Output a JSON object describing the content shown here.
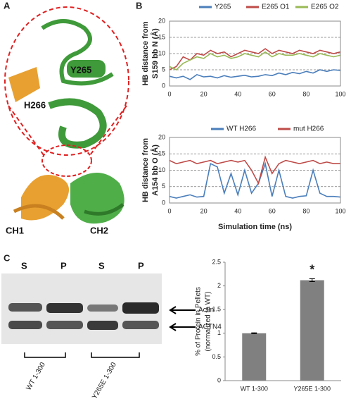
{
  "panel_labels": [
    "A",
    "B",
    "C"
  ],
  "panel_a": {
    "labels": [
      "Y265",
      "H266",
      "CH1",
      "CH2"
    ]
  },
  "panel_c_gel": {
    "lanes": [
      "S",
      "P",
      "S",
      "P"
    ],
    "bands": [
      "Actin",
      "ACTN4"
    ],
    "groups": [
      "WT 1-300",
      "Y265E 1-300"
    ]
  },
  "chart_data": [
    {
      "type": "line",
      "ylabel": [
        "HB distance from",
        "S159 bb N (Å)"
      ],
      "x": [
        0,
        4,
        8,
        12,
        16,
        20,
        24,
        28,
        32,
        36,
        40,
        44,
        48,
        52,
        56,
        60,
        64,
        68,
        72,
        76,
        80,
        84,
        88,
        92,
        96,
        100
      ],
      "series": [
        {
          "name": "Y265",
          "color": "#4a7ebb",
          "values": [
            3,
            2.5,
            3,
            2,
            3.5,
            2.8,
            3,
            2.5,
            3.2,
            2.7,
            3,
            3.3,
            2.8,
            3,
            3.5,
            3.2,
            4,
            3.5,
            4.2,
            3.8,
            4.5,
            4,
            5,
            4.5,
            5,
            4.8
          ]
        },
        {
          "name": "E265 O1",
          "color": "#be4b48",
          "values": [
            5,
            6,
            9,
            8,
            10,
            9.5,
            11,
            10,
            10.5,
            9,
            10,
            11,
            10.5,
            10,
            11.5,
            10,
            11,
            10.5,
            10,
            11,
            10.5,
            10,
            11,
            10.5,
            10,
            10.5
          ]
        },
        {
          "name": "E265 O2",
          "color": "#98b954",
          "values": [
            6,
            5,
            7,
            8,
            9,
            8.5,
            10,
            9,
            9.5,
            8.5,
            9,
            10,
            9.5,
            9,
            10.5,
            9,
            10,
            9.5,
            9.5,
            10,
            9.5,
            9,
            10,
            9.5,
            9,
            9.5
          ]
        }
      ],
      "xlim": [
        0,
        100
      ],
      "xticks": [
        0,
        20,
        40,
        60,
        80,
        100
      ],
      "ylim": [
        0,
        20
      ],
      "yticks": [
        0,
        5,
        10,
        15,
        20
      ],
      "grid": true
    },
    {
      "type": "line",
      "ylabel": [
        "HB distance from",
        "A154 bb O (Å)"
      ],
      "xlabel": "Simulation time (ns)",
      "x": [
        0,
        4,
        8,
        12,
        16,
        20,
        24,
        28,
        32,
        36,
        40,
        44,
        48,
        52,
        56,
        60,
        64,
        68,
        72,
        76,
        80,
        84,
        88,
        92,
        96,
        100
      ],
      "series": [
        {
          "name": "WT H266",
          "color": "#4a7ebb",
          "values": [
            2,
            1.5,
            2,
            2.5,
            1.8,
            2,
            12,
            11,
            3,
            9,
            2.5,
            10,
            3,
            6,
            12,
            2,
            10,
            2,
            1.5,
            2,
            2.2,
            10,
            3,
            2,
            2,
            1.8
          ]
        },
        {
          "name": "mut H266",
          "color": "#be4b48",
          "values": [
            13,
            12,
            12.5,
            13,
            12,
            12.5,
            13,
            12,
            12.5,
            13,
            12.5,
            13,
            10,
            6,
            14,
            9,
            12,
            13,
            12.5,
            12,
            12.5,
            13,
            12,
            12.5,
            12,
            12
          ]
        }
      ],
      "xlim": [
        0,
        100
      ],
      "xticks": [
        0,
        20,
        40,
        60,
        80,
        100
      ],
      "ylim": [
        0,
        20
      ],
      "yticks": [
        0,
        5,
        10,
        15,
        20
      ],
      "grid": true
    },
    {
      "type": "bar",
      "ylabel": [
        "% of Protein in Pellets",
        "(normalized to WT)"
      ],
      "categories": [
        "WT 1-300",
        "Y265E 1-300"
      ],
      "values": [
        1,
        2.12
      ],
      "errors": [
        0.01,
        0.03
      ],
      "color": "#808080",
      "annotation": "*",
      "ylim": [
        0,
        2.5
      ],
      "yticks": [
        0,
        0.5,
        1,
        1.5,
        2,
        2.5
      ],
      "grid": false
    }
  ]
}
